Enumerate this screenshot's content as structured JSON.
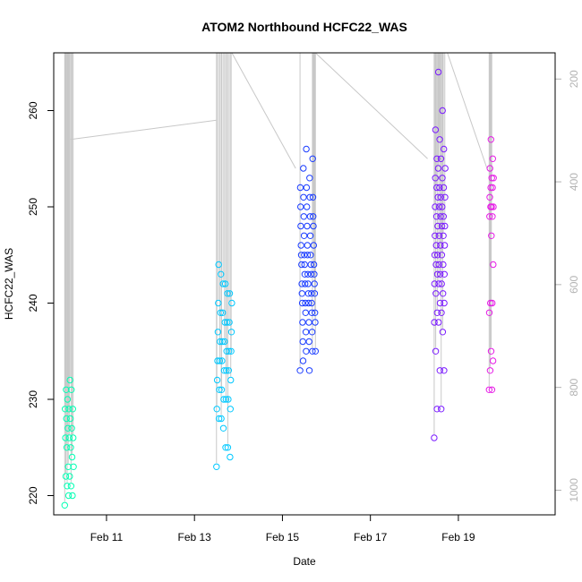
{
  "chart_data": {
    "type": "scatter",
    "title": "ATOM2 Northbound HCFC22_WAS",
    "xlabel": "Date",
    "ylabel": "HCFC22_WAS",
    "x_tick_labels": [
      "Feb 11",
      "Feb 13",
      "Feb 15",
      "Feb 17",
      "Feb 19"
    ],
    "x_tick_days": [
      11,
      13,
      15,
      17,
      19
    ],
    "xlim_days": [
      9.8,
      21.2
    ],
    "ylim": [
      218,
      266
    ],
    "y_ticks": [
      220,
      230,
      240,
      250,
      260
    ],
    "right_axis": {
      "label_values": [
        200,
        400,
        600,
        800,
        1000
      ],
      "range": [
        1048,
        149
      ],
      "color": "#b3b3b3"
    },
    "grid": false,
    "point_style": "open-circle",
    "series": [
      {
        "color": "#00ffb3",
        "x_range": [
          10.05,
          10.25
        ],
        "values": [
          219,
          220,
          220,
          221,
          221,
          222,
          222,
          223,
          223,
          224,
          225,
          225,
          226,
          226,
          226,
          227,
          227,
          228,
          228,
          229,
          229,
          229,
          230,
          231,
          231,
          232
        ]
      },
      {
        "color": "#00c8ff",
        "x_range": [
          13.5,
          13.85
        ],
        "values": [
          223,
          224,
          225,
          225,
          227,
          228,
          228,
          229,
          229,
          230,
          230,
          230,
          231,
          231,
          232,
          232,
          233,
          233,
          233,
          234,
          234,
          234,
          235,
          235,
          235,
          236,
          236,
          236,
          237,
          237,
          238,
          238,
          238,
          239,
          239,
          240,
          240,
          241,
          241,
          242,
          242,
          243,
          244
        ]
      },
      {
        "color": "#1a3cff",
        "x_range": [
          15.4,
          15.75
        ],
        "values": [
          233,
          233,
          234,
          235,
          235,
          235,
          236,
          236,
          237,
          237,
          238,
          238,
          238,
          239,
          239,
          239,
          240,
          240,
          240,
          240,
          241,
          241,
          241,
          241,
          242,
          242,
          242,
          242,
          243,
          243,
          243,
          243,
          244,
          244,
          244,
          244,
          245,
          245,
          245,
          245,
          246,
          246,
          246,
          247,
          247,
          248,
          248,
          248,
          249,
          249,
          249,
          250,
          250,
          251,
          251,
          251,
          252,
          252,
          253,
          254,
          255,
          256
        ]
      },
      {
        "color": "#7a1aff",
        "x_range": [
          18.45,
          18.7
        ],
        "values": [
          226,
          229,
          229,
          233,
          233,
          235,
          237,
          238,
          238,
          239,
          239,
          240,
          240,
          241,
          241,
          242,
          242,
          242,
          243,
          243,
          243,
          244,
          244,
          244,
          245,
          245,
          245,
          246,
          246,
          246,
          247,
          247,
          247,
          248,
          248,
          248,
          249,
          249,
          249,
          250,
          250,
          250,
          251,
          251,
          251,
          252,
          252,
          252,
          253,
          253,
          254,
          254,
          255,
          255,
          256,
          257,
          258,
          260,
          264
        ]
      },
      {
        "color": "#e61ae6",
        "x_range": [
          19.7,
          19.8
        ],
        "values": [
          231,
          231,
          233,
          234,
          235,
          239,
          240,
          240,
          244,
          247,
          249,
          249,
          250,
          250,
          250,
          251,
          252,
          252,
          253,
          253,
          254,
          255,
          257
        ]
      }
    ]
  }
}
